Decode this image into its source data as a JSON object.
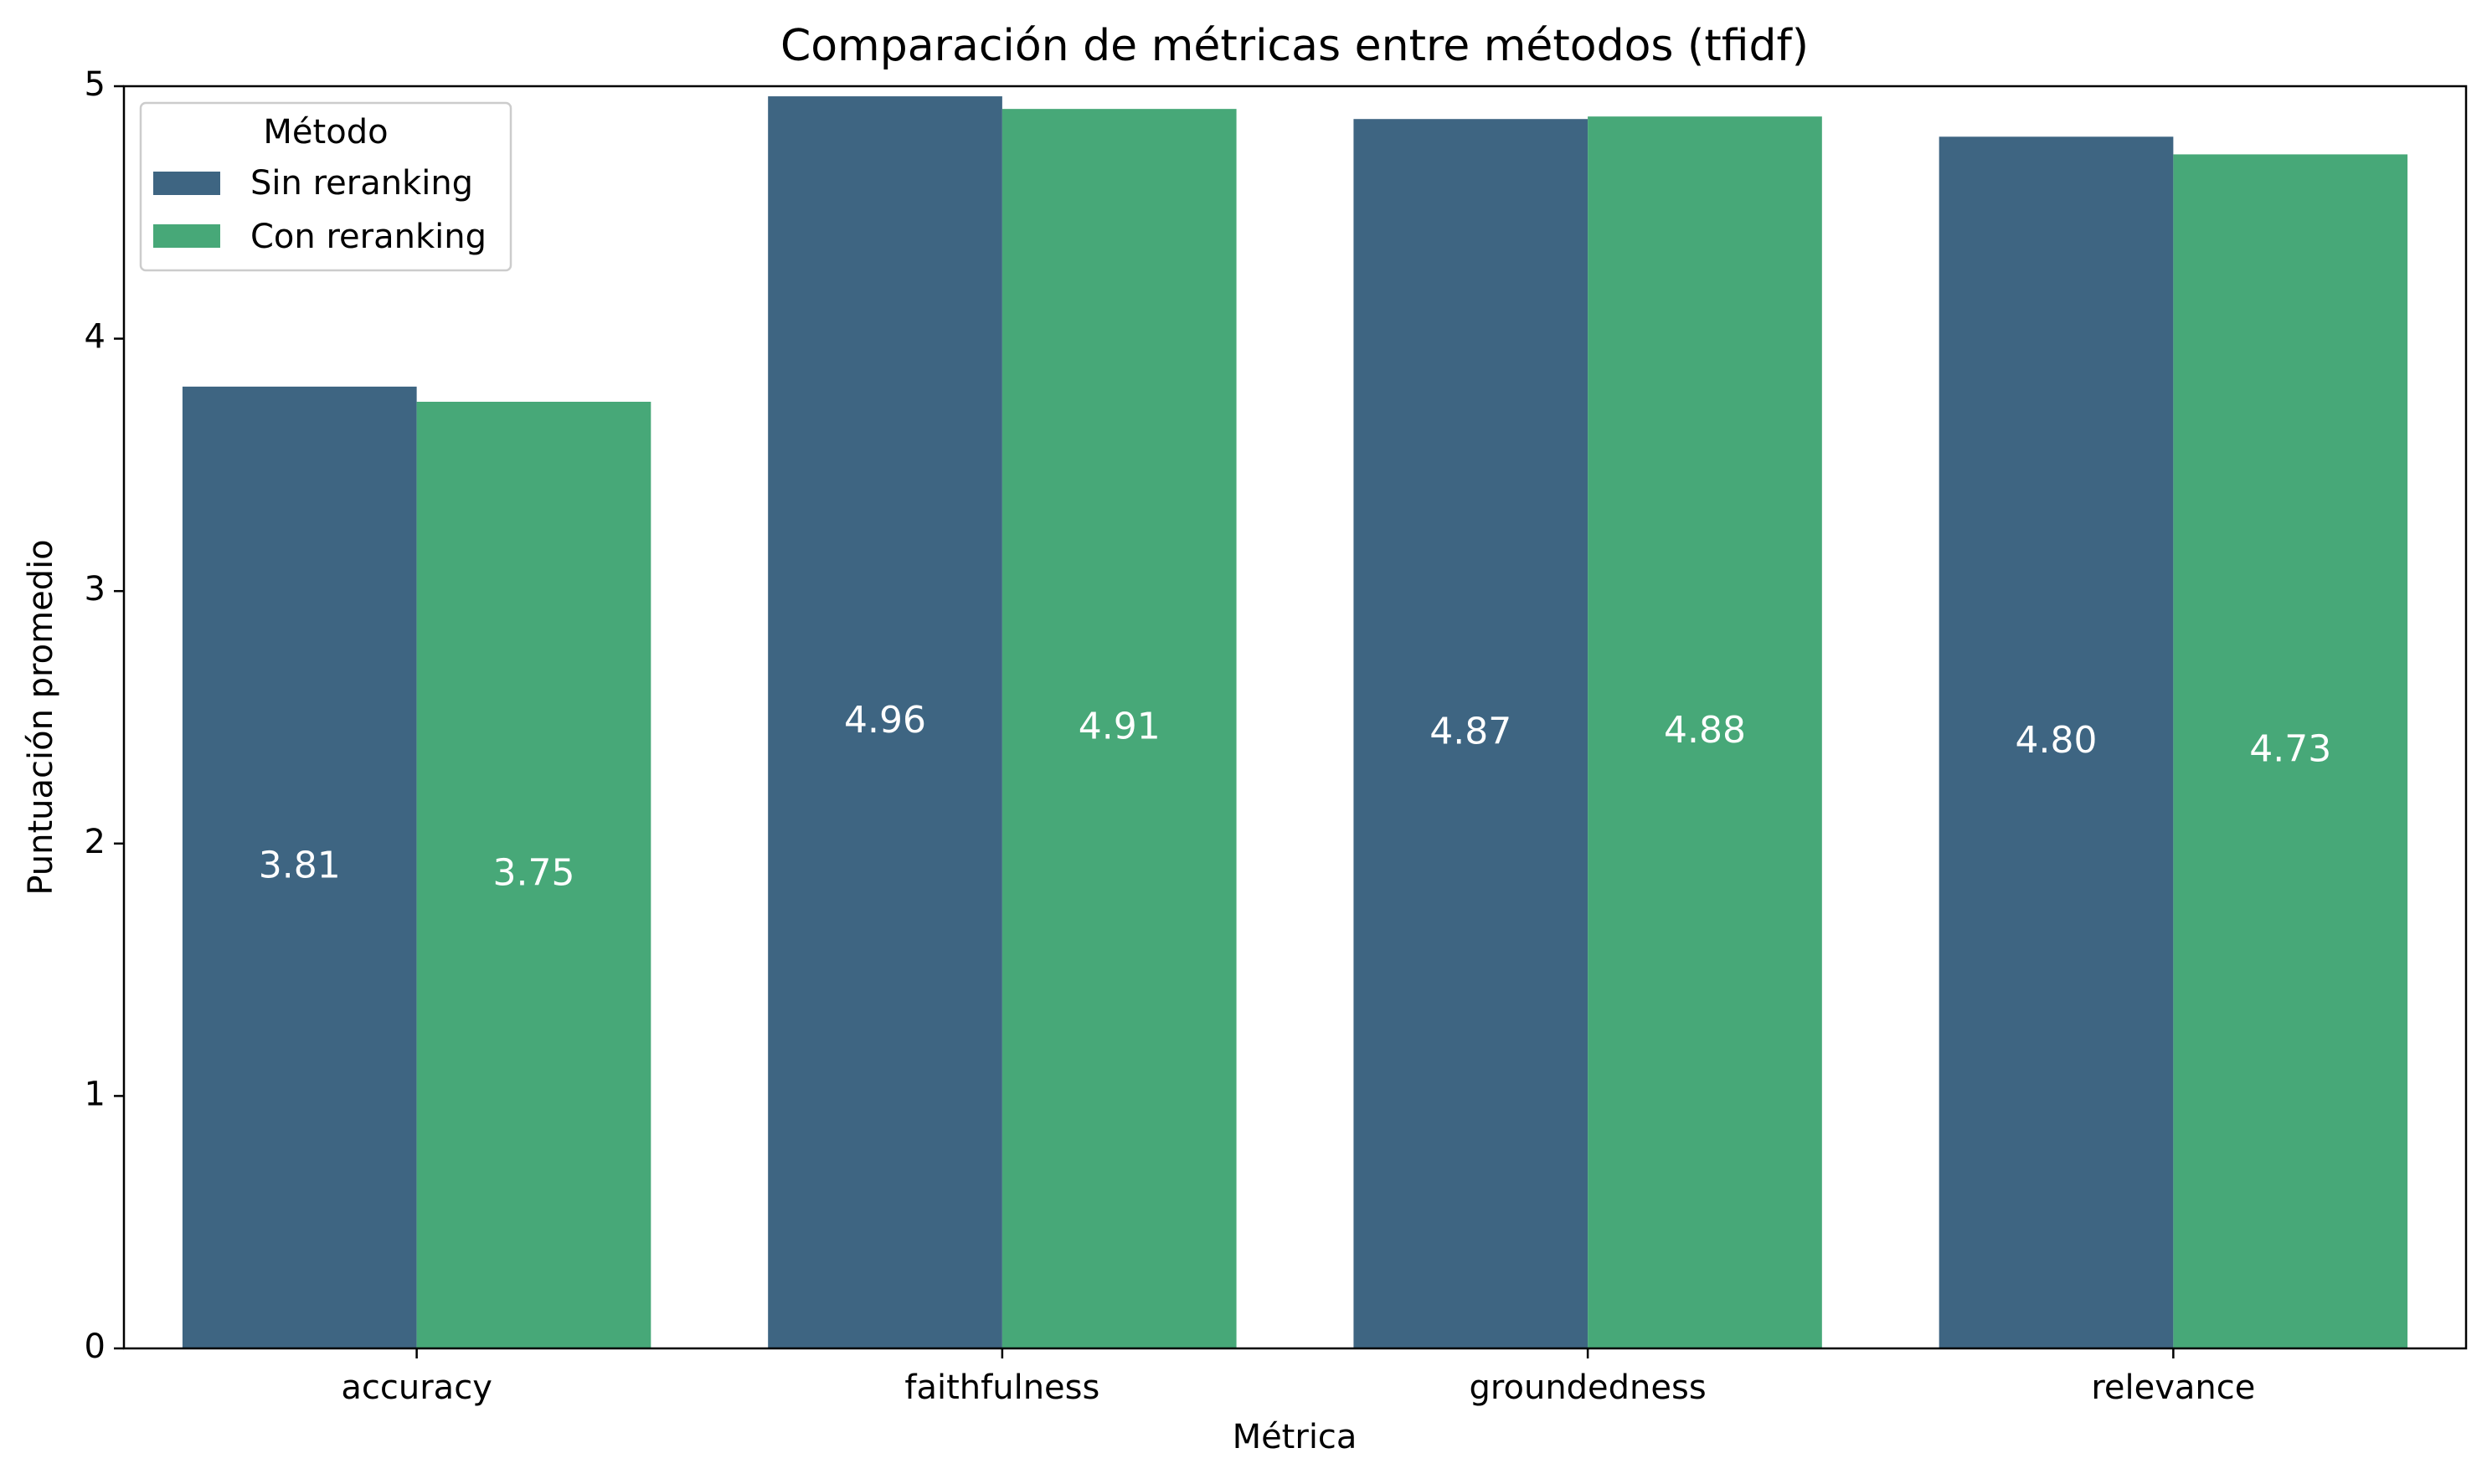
{
  "chart_data": {
    "type": "bar",
    "title": "Comparación de métricas entre métodos (tfidf)",
    "xlabel": "Métrica",
    "ylabel": "Puntuación promedio",
    "categories": [
      "accuracy",
      "faithfulness",
      "groundedness",
      "relevance"
    ],
    "ylim": [
      0,
      5
    ],
    "yticks": [
      0,
      1,
      2,
      3,
      4,
      5
    ],
    "grid": false,
    "legend": {
      "title": "Método",
      "placement": "top-left"
    },
    "series": [
      {
        "name": "Sin reranking",
        "color": "#3e6582",
        "values": [
          3.81,
          4.96,
          4.87,
          4.8
        ],
        "labels": [
          "3.81",
          "4.96",
          "4.87",
          "4.80"
        ]
      },
      {
        "name": "Con reranking",
        "color": "#47a878",
        "values": [
          3.75,
          4.91,
          4.88,
          4.73
        ],
        "labels": [
          "3.75",
          "4.91",
          "4.88",
          "4.73"
        ]
      }
    ]
  }
}
